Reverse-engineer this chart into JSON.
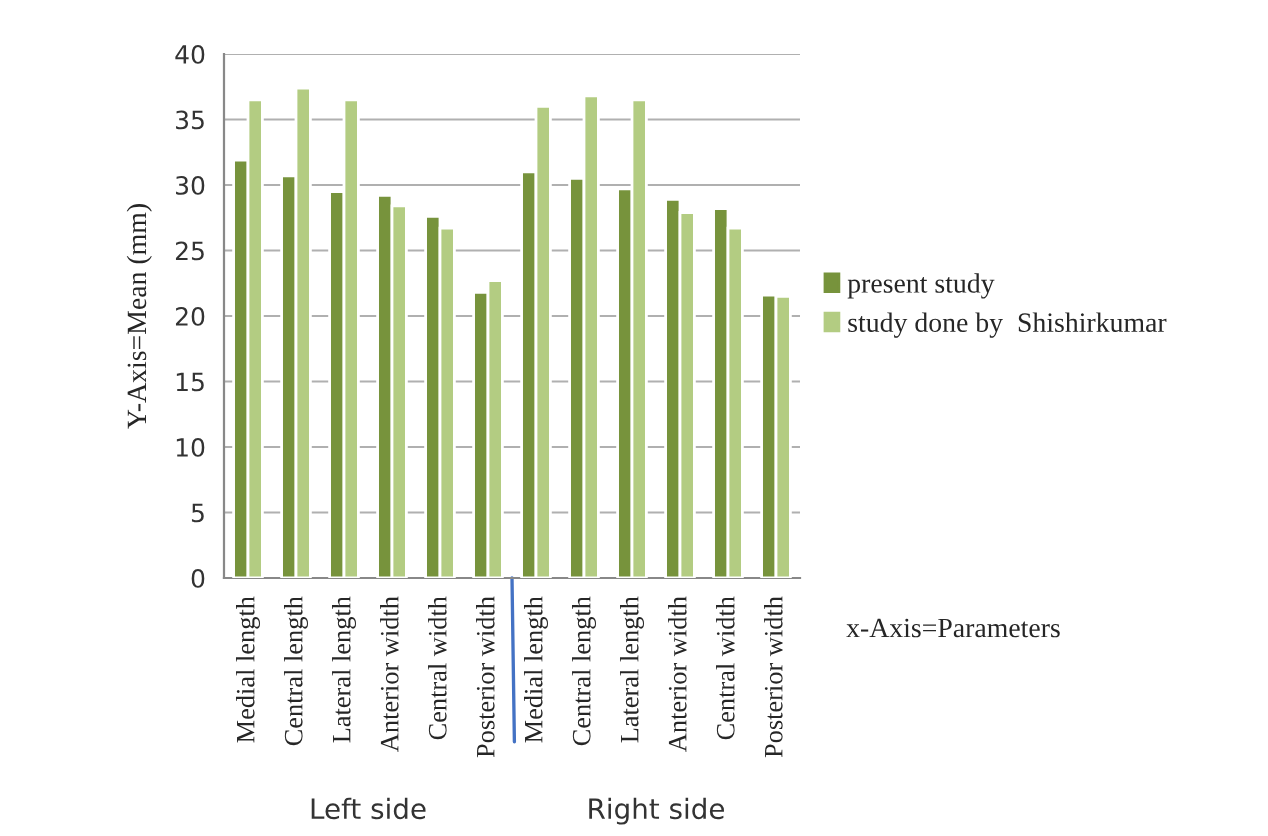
{
  "chart_data": {
    "type": "bar",
    "ylabel": "Y-Axis=Mean (mm)",
    "categories": [
      "Medial length",
      "Central length",
      "Lateral length",
      "Anterior width",
      "Central width",
      "Posterior width",
      "Medial length",
      "Central length",
      "Lateral length",
      "Anterior width",
      "Central width",
      "Posterior width"
    ],
    "series": [
      {
        "name": "present study",
        "color": "#77933c",
        "values": [
          31.9,
          30.7,
          29.5,
          29.2,
          27.6,
          21.8,
          31.0,
          30.5,
          29.7,
          28.9,
          28.2,
          21.6
        ]
      },
      {
        "name": "study done by  Shishirkumar",
        "color": "#b3cc82",
        "values": [
          36.5,
          37.4,
          36.5,
          28.4,
          26.7,
          22.7,
          36.0,
          36.8,
          36.5,
          27.9,
          26.7,
          21.5
        ]
      }
    ],
    "ylim": [
      0,
      40
    ],
    "yticks": [
      0,
      5,
      10,
      15,
      20,
      25,
      30,
      35,
      40
    ],
    "grid": "y",
    "legend": "right",
    "annotations": [
      "Left side",
      "Right side",
      "x-Axis=Parameters"
    ]
  }
}
